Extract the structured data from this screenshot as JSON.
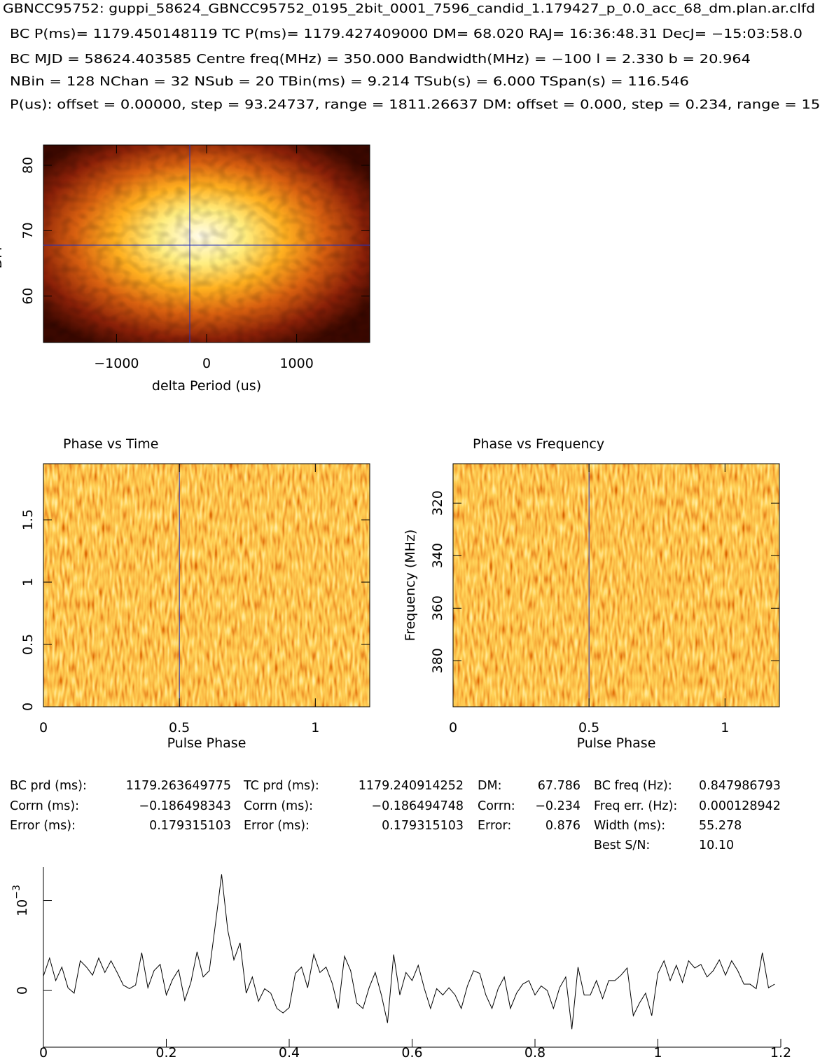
{
  "header": {
    "title": "GBNCC95752: guppi_58624_GBNCC95752_0195_2bit_0001_7596_candid_1.179427_p_0.0_acc_68_dm.plan.ar.clfd",
    "lines": [
      "BC P(ms)= 1179.450148119 TC P(ms)= 1179.427409000 DM= 68.020 RAJ= 16:36:48.31 DecJ= −15:03:58.0",
      "BC MJD = 58624.403585 Centre freq(MHz) = 350.000 Bandwidth(MHz) = −100 l = 2.330 b = 20.964",
      "NBin = 128 NChan = 32 NSub = 20 TBin(ms) = 9.214 TSub(s) = 6.000 TSpan(s) = 116.546",
      "P(us): offset = 0.00000, step = 93.24737, range = 1811.26637 DM: offset = 0.000, step = 0.234, range = 15."
    ]
  },
  "chart_data": [
    {
      "type": "heatmap",
      "xlabel": "delta Period (us)",
      "ylabel": "DM",
      "xlim": [
        -1811.27,
        1811.27
      ],
      "ylim": [
        52.9,
        83.1
      ],
      "xticks": [
        {
          "value": -1000,
          "label": "−1000"
        },
        0,
        1000
      ],
      "yticks": [
        60,
        70,
        80
      ],
      "crosshair": {
        "x": -186.5,
        "y": 67.786
      },
      "style": "blob"
    },
    {
      "type": "heatmap",
      "title": "Phase vs Time",
      "xlabel": "Pulse Phase",
      "xlim": [
        0,
        1.2
      ],
      "ylim": [
        0,
        1.95
      ],
      "xticks": [
        0,
        0.5,
        1
      ],
      "yticks": [
        0,
        0.5,
        1,
        1.5
      ],
      "crosshair": {
        "x": 0.5
      },
      "style": "noise"
    },
    {
      "type": "heatmap",
      "title": "Phase vs Frequency",
      "xlabel": "Pulse Phase",
      "ylabel": "Frequency (MHz)",
      "xlim": [
        0,
        1.2
      ],
      "ylim": [
        397.5,
        305
      ],
      "xticks": [
        0,
        0.5,
        1
      ],
      "yticks": [
        320,
        340,
        360,
        380
      ],
      "crosshair": {
        "x": 0.5
      },
      "style": "noise"
    },
    {
      "type": "line",
      "color": "#000000",
      "xlim": [
        0,
        1.2
      ],
      "ylim": [
        -0.00063,
        0.00137
      ],
      "xticks": [
        0,
        0.2,
        0.4,
        0.6,
        0.8,
        1,
        1.2
      ],
      "yticks": [
        0,
        {
          "value": 0.001,
          "label": "10",
          "exponent": "−3"
        }
      ],
      "x": [
        0,
        0.01,
        0.02,
        0.03,
        0.04,
        0.05,
        0.06,
        0.07,
        0.08,
        0.09,
        0.1,
        0.11,
        0.12,
        0.13,
        0.14,
        0.15,
        0.16,
        0.17,
        0.18,
        0.19,
        0.2,
        0.21,
        0.22,
        0.23,
        0.24,
        0.25,
        0.26,
        0.27,
        0.28,
        0.29,
        0.3,
        0.31,
        0.32,
        0.33,
        0.34,
        0.35,
        0.36,
        0.37,
        0.38,
        0.39,
        0.4,
        0.41,
        0.42,
        0.43,
        0.44,
        0.45,
        0.46,
        0.47,
        0.48,
        0.49,
        0.5,
        0.51,
        0.52,
        0.53,
        0.54,
        0.55,
        0.56,
        0.57,
        0.58,
        0.59,
        0.6,
        0.61,
        0.62,
        0.63,
        0.64,
        0.65,
        0.66,
        0.67,
        0.68,
        0.69,
        0.7,
        0.71,
        0.72,
        0.73,
        0.74,
        0.75,
        0.76,
        0.77,
        0.78,
        0.79,
        0.8,
        0.81,
        0.82,
        0.83,
        0.84,
        0.85,
        0.86,
        0.87,
        0.88,
        0.89,
        0.9,
        0.91,
        0.92,
        0.93,
        0.94,
        0.95,
        0.96,
        0.97,
        0.98,
        0.99,
        1,
        1.01,
        1.02,
        1.03,
        1.04,
        1.05,
        1.06,
        1.07,
        1.08,
        1.09,
        1.1,
        1.11,
        1.12,
        1.13,
        1.14,
        1.15,
        1.16,
        1.17,
        1.18,
        1.19
      ],
      "values": [
        0.00016,
        0.00036,
        0.00011,
        0.00026,
        3e-05,
        -3e-05,
        0.00033,
        0.00026,
        0.00017,
        0.00036,
        0.0002,
        0.00033,
        0.0002,
        6e-05,
        2e-05,
        6e-05,
        0.00042,
        3e-05,
        0.00022,
        0.00029,
        -5e-05,
        0.00012,
        0.00023,
        -0.00011,
        9e-05,
        0.00043,
        0.00015,
        0.00022,
        0.00074,
        0.00129,
        0.00067,
        0.00034,
        0.00053,
        -3e-05,
        0.00015,
        -0.00012,
        2e-05,
        -3e-05,
        -0.0002,
        -0.00025,
        -0.00019,
        0.00019,
        0.00026,
        3e-05,
        0.0004,
        0.0002,
        0.00026,
        8e-05,
        -0.0002,
        0.00038,
        0.00022,
        -0.00014,
        -0.0002,
        3e-05,
        0.0002,
        -5e-05,
        -0.00036,
        0.0004,
        -5e-05,
        0.0002,
        0.00011,
        0.00028,
        2e-05,
        -0.0002,
        2e-05,
        -5e-05,
        3e-05,
        -5e-05,
        -0.0002,
        5e-05,
        0.00022,
        0.00019,
        -5e-05,
        -0.0002,
        2e-05,
        0.00015,
        -0.0002,
        -3e-05,
        7e-05,
        0.00011,
        -5e-05,
        5e-05,
        0,
        -0.0002,
        3e-05,
        0.00015,
        -0.00043,
        0.00026,
        -5e-05,
        -5e-05,
        0.00011,
        -9e-05,
        0.00011,
        0.00011,
        0.00017,
        0.00025,
        -0.00028,
        -0.00014,
        -3e-05,
        -0.00028,
        0.00019,
        0.00033,
        0.00011,
        0.00028,
        9e-05,
        0.00033,
        0.00025,
        0.00029,
        0.00015,
        0.00022,
        0.00034,
        0.00017,
        0.00033,
        0.00022,
        7e-05,
        7e-05,
        2e-05,
        0.00042,
        3e-05,
        7e-05
      ]
    }
  ],
  "results": {
    "bc": [
      [
        "BC prd (ms):",
        "1179.263649775"
      ],
      [
        "Corrn (ms):",
        "−0.186498343"
      ],
      [
        "Error (ms):",
        "0.179315103"
      ]
    ],
    "tc": [
      [
        "TC prd (ms):",
        "1179.240914252"
      ],
      [
        "Corrn (ms):",
        "−0.186494748"
      ],
      [
        "Error (ms):",
        "0.179315103"
      ]
    ],
    "dm": [
      [
        "DM:",
        "67.786"
      ],
      [
        "Corrn:",
        "−0.234"
      ],
      [
        "Error:",
        "0.876"
      ]
    ],
    "freq": [
      [
        "BC freq (Hz):",
        "0.847986793"
      ],
      [
        "Freq err. (Hz):",
        "0.000128942"
      ],
      [
        "Width (ms):",
        "55.278"
      ],
      [
        "Best S/N:",
        "10.10"
      ]
    ]
  }
}
